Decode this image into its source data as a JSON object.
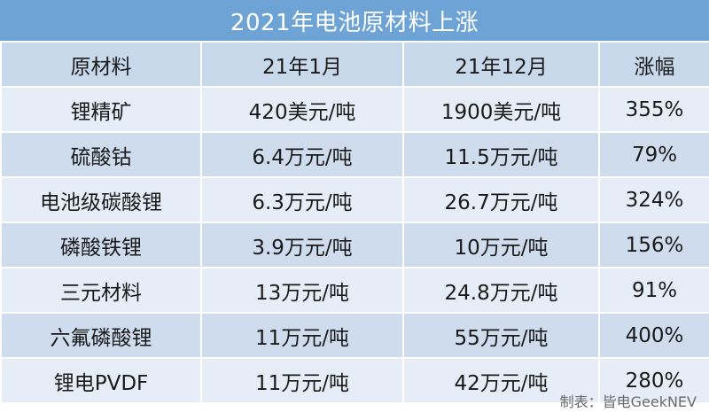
{
  "title": "2021年电池原材料上涨",
  "table": {
    "headers": [
      "原材料",
      "21年1月",
      "21年12月",
      "涨幅"
    ],
    "rows": [
      [
        "锂精矿",
        "420美元/吨",
        "1900美元/吨",
        "355%"
      ],
      [
        "硫酸钴",
        "6.4万元/吨",
        "11.5万元/吨",
        "79%"
      ],
      [
        "电池级碳酸锂",
        "6.3万元/吨",
        "26.7万元/吨",
        "324%"
      ],
      [
        "磷酸铁锂",
        "3.9万元/吨",
        "10万元/吨",
        "156%"
      ],
      [
        "三元材料",
        "13万元/吨",
        "24.8万元/吨",
        "91%"
      ],
      [
        "六氟磷酸锂",
        "11万元/吨",
        "55万元/吨",
        "400%"
      ],
      [
        "锂电PVDF",
        "11万元/吨",
        "42万元/吨",
        "280%"
      ]
    ]
  },
  "credit": "制表：皆电GeekNEV",
  "colors": {
    "title_bar": "#6ea3d6",
    "header_row": "#c9d9ec",
    "row_light": "#e6edf7",
    "row_dark": "#cfdcee"
  }
}
